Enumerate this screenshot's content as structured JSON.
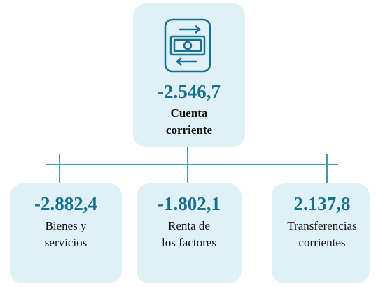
{
  "nodes": [
    {
      "value": "-2.546,7",
      "label": [
        "Cuenta",
        "corriente"
      ]
    },
    {
      "value": "-2.882,4",
      "label": [
        "Bienes y",
        "servicios"
      ]
    },
    {
      "value": "-1.802,1",
      "label": [
        "Renta de",
        "los factores"
      ]
    },
    {
      "value": "2.137,8",
      "label": [
        "Transferencias",
        "corrientes"
      ]
    }
  ]
}
